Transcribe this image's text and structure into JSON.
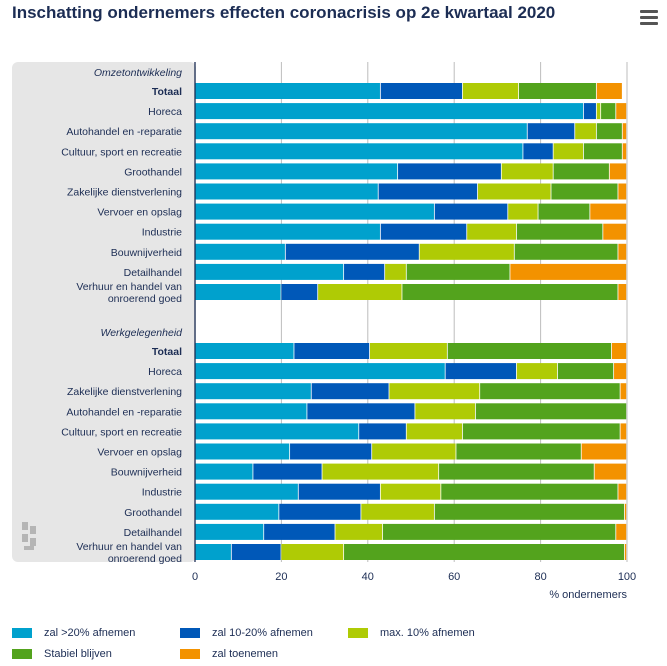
{
  "title": "Inschatting ondernemers effecten coronacrisis op 2e kwartaal 2020",
  "menu_icon": "hamburger-menu-icon",
  "logo_icon": "cbs-logo-icon",
  "colors": {
    "panel": "#e6e6e6",
    "grid": "#bdbdbd",
    "series": [
      "#00a1cd",
      "#0058b8",
      "#afcb05",
      "#53a31d",
      "#f39200"
    ]
  },
  "chart_data": {
    "type": "bar",
    "orientation": "horizontal",
    "stacked": true,
    "xlabel": "% ondernemers",
    "xlim": [
      0,
      100
    ],
    "xticks": [
      0,
      20,
      40,
      60,
      80,
      100
    ],
    "grid": true,
    "legend_position": "bottom",
    "legend": [
      "zal >20% afnemen",
      "zal 10-20% afnemen",
      "max. 10% afnemen",
      "Stabiel blijven",
      "zal toenemen"
    ],
    "groups": [
      {
        "label": "Omzetontwikkeling",
        "rows": [
          {
            "label": "Totaal",
            "bold": true,
            "values": [
              43,
              19,
              13,
              18,
              6
            ]
          },
          {
            "label": "Horeca",
            "bold": false,
            "values": [
              90,
              3,
              1,
              3.5,
              2.5
            ]
          },
          {
            "label": "Autohandel en -reparatie",
            "bold": false,
            "values": [
              77,
              11,
              5,
              6,
              1
            ]
          },
          {
            "label": "Cultuur, sport en recreatie",
            "bold": false,
            "values": [
              76,
              7,
              7,
              9,
              1
            ]
          },
          {
            "label": "Groothandel",
            "bold": false,
            "values": [
              47,
              24,
              12,
              13,
              4
            ]
          },
          {
            "label": "Zakelijke dienstverlening",
            "bold": false,
            "values": [
              42.5,
              23,
              17,
              15.5,
              2
            ]
          },
          {
            "label": "Vervoer en opslag",
            "bold": false,
            "values": [
              55.5,
              17,
              7,
              12,
              8.5
            ]
          },
          {
            "label": "Industrie",
            "bold": false,
            "values": [
              43,
              20,
              11.5,
              20,
              5.5
            ]
          },
          {
            "label": "Bouwnijverheid",
            "bold": false,
            "values": [
              21,
              31,
              22,
              24,
              2
            ]
          },
          {
            "label": "Detailhandel",
            "bold": false,
            "values": [
              34.5,
              9.5,
              5,
              24,
              27
            ]
          },
          {
            "label": "Verhuur en handel van onroerend goed",
            "bold": false,
            "values": [
              20,
              8.5,
              19.5,
              50,
              2
            ]
          }
        ]
      },
      {
        "label": "Werkgelegenheid",
        "rows": [
          {
            "label": "Totaal",
            "bold": true,
            "values": [
              23,
              17.5,
              18,
              38,
              3.5
            ]
          },
          {
            "label": "Horeca",
            "bold": false,
            "values": [
              58,
              16.5,
              9.5,
              13,
              3
            ]
          },
          {
            "label": "Zakelijke dienstverlening",
            "bold": false,
            "values": [
              27,
              18,
              21,
              32.5,
              1.5
            ]
          },
          {
            "label": "Autohandel en -reparatie",
            "bold": false,
            "values": [
              26,
              25,
              14,
              35,
              0
            ]
          },
          {
            "label": "Cultuur, sport en recreatie",
            "bold": false,
            "values": [
              38,
              11,
              13,
              36.5,
              1.5
            ]
          },
          {
            "label": "Vervoer en opslag",
            "bold": false,
            "values": [
              22,
              19,
              19.5,
              29,
              10.5
            ]
          },
          {
            "label": "Bouwnijverheid",
            "bold": false,
            "values": [
              13.5,
              16,
              27,
              36,
              7.5
            ]
          },
          {
            "label": "Industrie",
            "bold": false,
            "values": [
              24,
              19,
              14,
              41,
              2
            ]
          },
          {
            "label": "Groothandel",
            "bold": false,
            "values": [
              19.5,
              19,
              17,
              44,
              0.5
            ]
          },
          {
            "label": "Detailhandel",
            "bold": false,
            "values": [
              16,
              16.5,
              11,
              54,
              2.5
            ]
          },
          {
            "label": "Verhuur en handel van onroerend goed",
            "bold": false,
            "values": [
              8.5,
              11.5,
              14.5,
              65,
              0.5
            ]
          }
        ]
      }
    ]
  }
}
